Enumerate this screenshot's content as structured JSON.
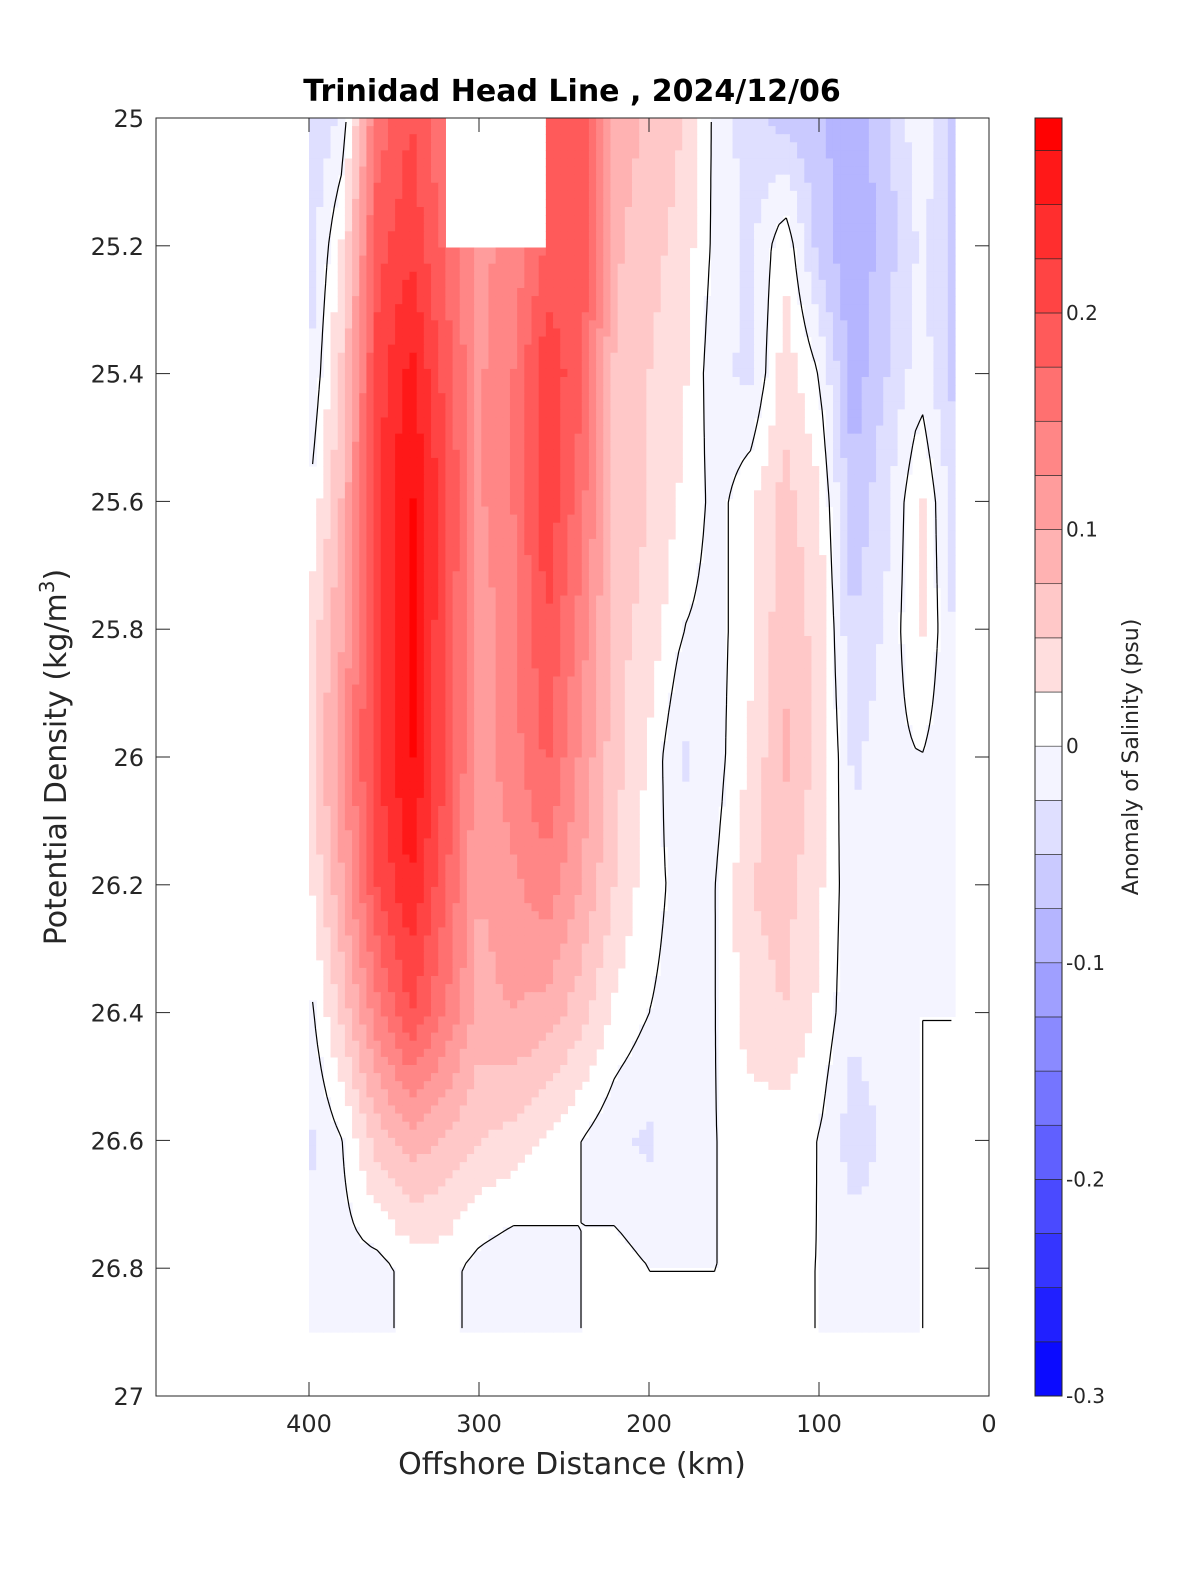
{
  "chart_data": {
    "type": "heatmap",
    "subtype": "filled-contour",
    "title": "Trinidad Head Line , 2024/12/06",
    "xlabel": "Offshore Distance (km)",
    "ylabel": "Potential Density (kg/m",
    "ylabel_sup": "3",
    "ylabel_close": ")",
    "xlim": [
      490,
      0
    ],
    "x_reversed": true,
    "xticks": [
      400,
      300,
      200,
      100,
      0
    ],
    "xtick_labels": [
      "400",
      "300",
      "200",
      "100",
      "0"
    ],
    "ylim": [
      25,
      27
    ],
    "y_reversed": true,
    "yticks": [
      25,
      25.2,
      25.4,
      25.6,
      25.8,
      26,
      26.2,
      26.4,
      26.6,
      26.8,
      27
    ],
    "ytick_labels": [
      "25",
      "25.2",
      "25.4",
      "25.6",
      "25.8",
      "26",
      "26.2",
      "26.4",
      "26.6",
      "26.8",
      "27"
    ],
    "colorbar": {
      "label": "Anomaly of Salinity (psu)",
      "range": [
        -0.3,
        0.29
      ],
      "step": 0.025,
      "ticks": [
        0.2,
        0.1,
        0,
        -0.1,
        -0.2,
        -0.3
      ],
      "tick_labels": [
        "0.2",
        "0.1",
        "0",
        "-0.1",
        "-0.2",
        "-0.3"
      ],
      "min_color": "#0000ff",
      "max_color": "#ff0000",
      "zero_color": "#ffffff"
    },
    "zero_contour_color": "#000000",
    "x_stations": [
      400,
      380,
      360,
      340,
      320,
      300,
      280,
      260,
      240,
      220,
      200,
      180,
      160,
      140,
      120,
      100,
      80,
      60,
      40,
      20
    ],
    "y_levels": [
      25.0,
      25.2,
      25.4,
      25.6,
      25.8,
      26.0,
      26.2,
      26.4,
      26.6,
      26.8,
      26.9
    ],
    "values": [
      [
        -0.05,
        -0.02,
        0.16,
        0.2,
        0.15,
        null,
        null,
        0.18,
        0.2,
        0.09,
        0.07,
        0.05,
        -0.01,
        -0.04,
        -0.06,
        -0.07,
        -0.09,
        -0.06,
        0.0,
        -0.06
      ],
      [
        -0.04,
        0.03,
        0.19,
        0.22,
        0.17,
        0.12,
        0.13,
        0.18,
        0.2,
        0.08,
        0.06,
        0.04,
        -0.01,
        -0.03,
        0.02,
        -0.06,
        -0.1,
        -0.06,
        -0.02,
        -0.06
      ],
      [
        -0.03,
        0.06,
        0.21,
        0.26,
        0.19,
        0.12,
        0.15,
        0.22,
        0.18,
        0.07,
        0.05,
        0.03,
        -0.02,
        -0.03,
        0.04,
        0.0,
        -0.09,
        -0.05,
        -0.01,
        -0.06
      ],
      [
        0.0,
        0.08,
        0.22,
        0.28,
        0.21,
        0.12,
        0.15,
        0.22,
        0.16,
        0.07,
        0.05,
        0.02,
        -0.01,
        0.02,
        0.06,
        0.03,
        -0.07,
        -0.03,
        0.03,
        -0.04
      ],
      [
        0.03,
        0.1,
        0.22,
        0.28,
        0.2,
        0.11,
        0.14,
        0.2,
        0.14,
        0.06,
        0.04,
        0.0,
        -0.01,
        0.02,
        0.07,
        0.04,
        -0.05,
        -0.02,
        0.03,
        -0.03
      ],
      [
        0.04,
        0.12,
        0.22,
        0.28,
        0.2,
        0.11,
        0.14,
        0.18,
        0.12,
        0.06,
        0.02,
        -0.03,
        -0.01,
        0.03,
        0.08,
        0.04,
        -0.03,
        -0.01,
        0.0,
        -0.02
      ],
      [
        0.02,
        0.1,
        0.2,
        0.25,
        0.18,
        0.1,
        0.12,
        0.14,
        0.1,
        0.05,
        0.01,
        -0.01,
        0.0,
        0.05,
        0.06,
        0.03,
        -0.02,
        -0.01,
        0.0,
        -0.01
      ],
      [
        -0.01,
        0.06,
        0.14,
        0.2,
        0.15,
        0.09,
        0.1,
        0.09,
        0.06,
        0.02,
        0.0,
        -0.01,
        0.0,
        0.04,
        0.05,
        0.02,
        -0.02,
        -0.01,
        0.0,
        0.0
      ],
      [
        -0.03,
        0.0,
        0.06,
        0.09,
        0.07,
        0.05,
        0.04,
        0.02,
        0.0,
        -0.02,
        -0.03,
        -0.01,
        0.0,
        0.01,
        0.01,
        0.0,
        -0.04,
        -0.02,
        0.0,
        0.0
      ],
      [
        -0.02,
        -0.01,
        -0.01,
        0.01,
        0.01,
        -0.01,
        -0.02,
        -0.01,
        0.0,
        0.01,
        0.0,
        0.0,
        0.0,
        0.0,
        0.0,
        0.0,
        -0.01,
        -0.01,
        0.0,
        0.0
      ],
      [
        0.0,
        0.0,
        0.0,
        0.0,
        0.0,
        0.0,
        0.0,
        0.0,
        0.0,
        0.0,
        0.0,
        0.0,
        0.0,
        0.0,
        0.0,
        0.0,
        0.0,
        0.0,
        0.0,
        0.0
      ]
    ],
    "grid": false
  }
}
